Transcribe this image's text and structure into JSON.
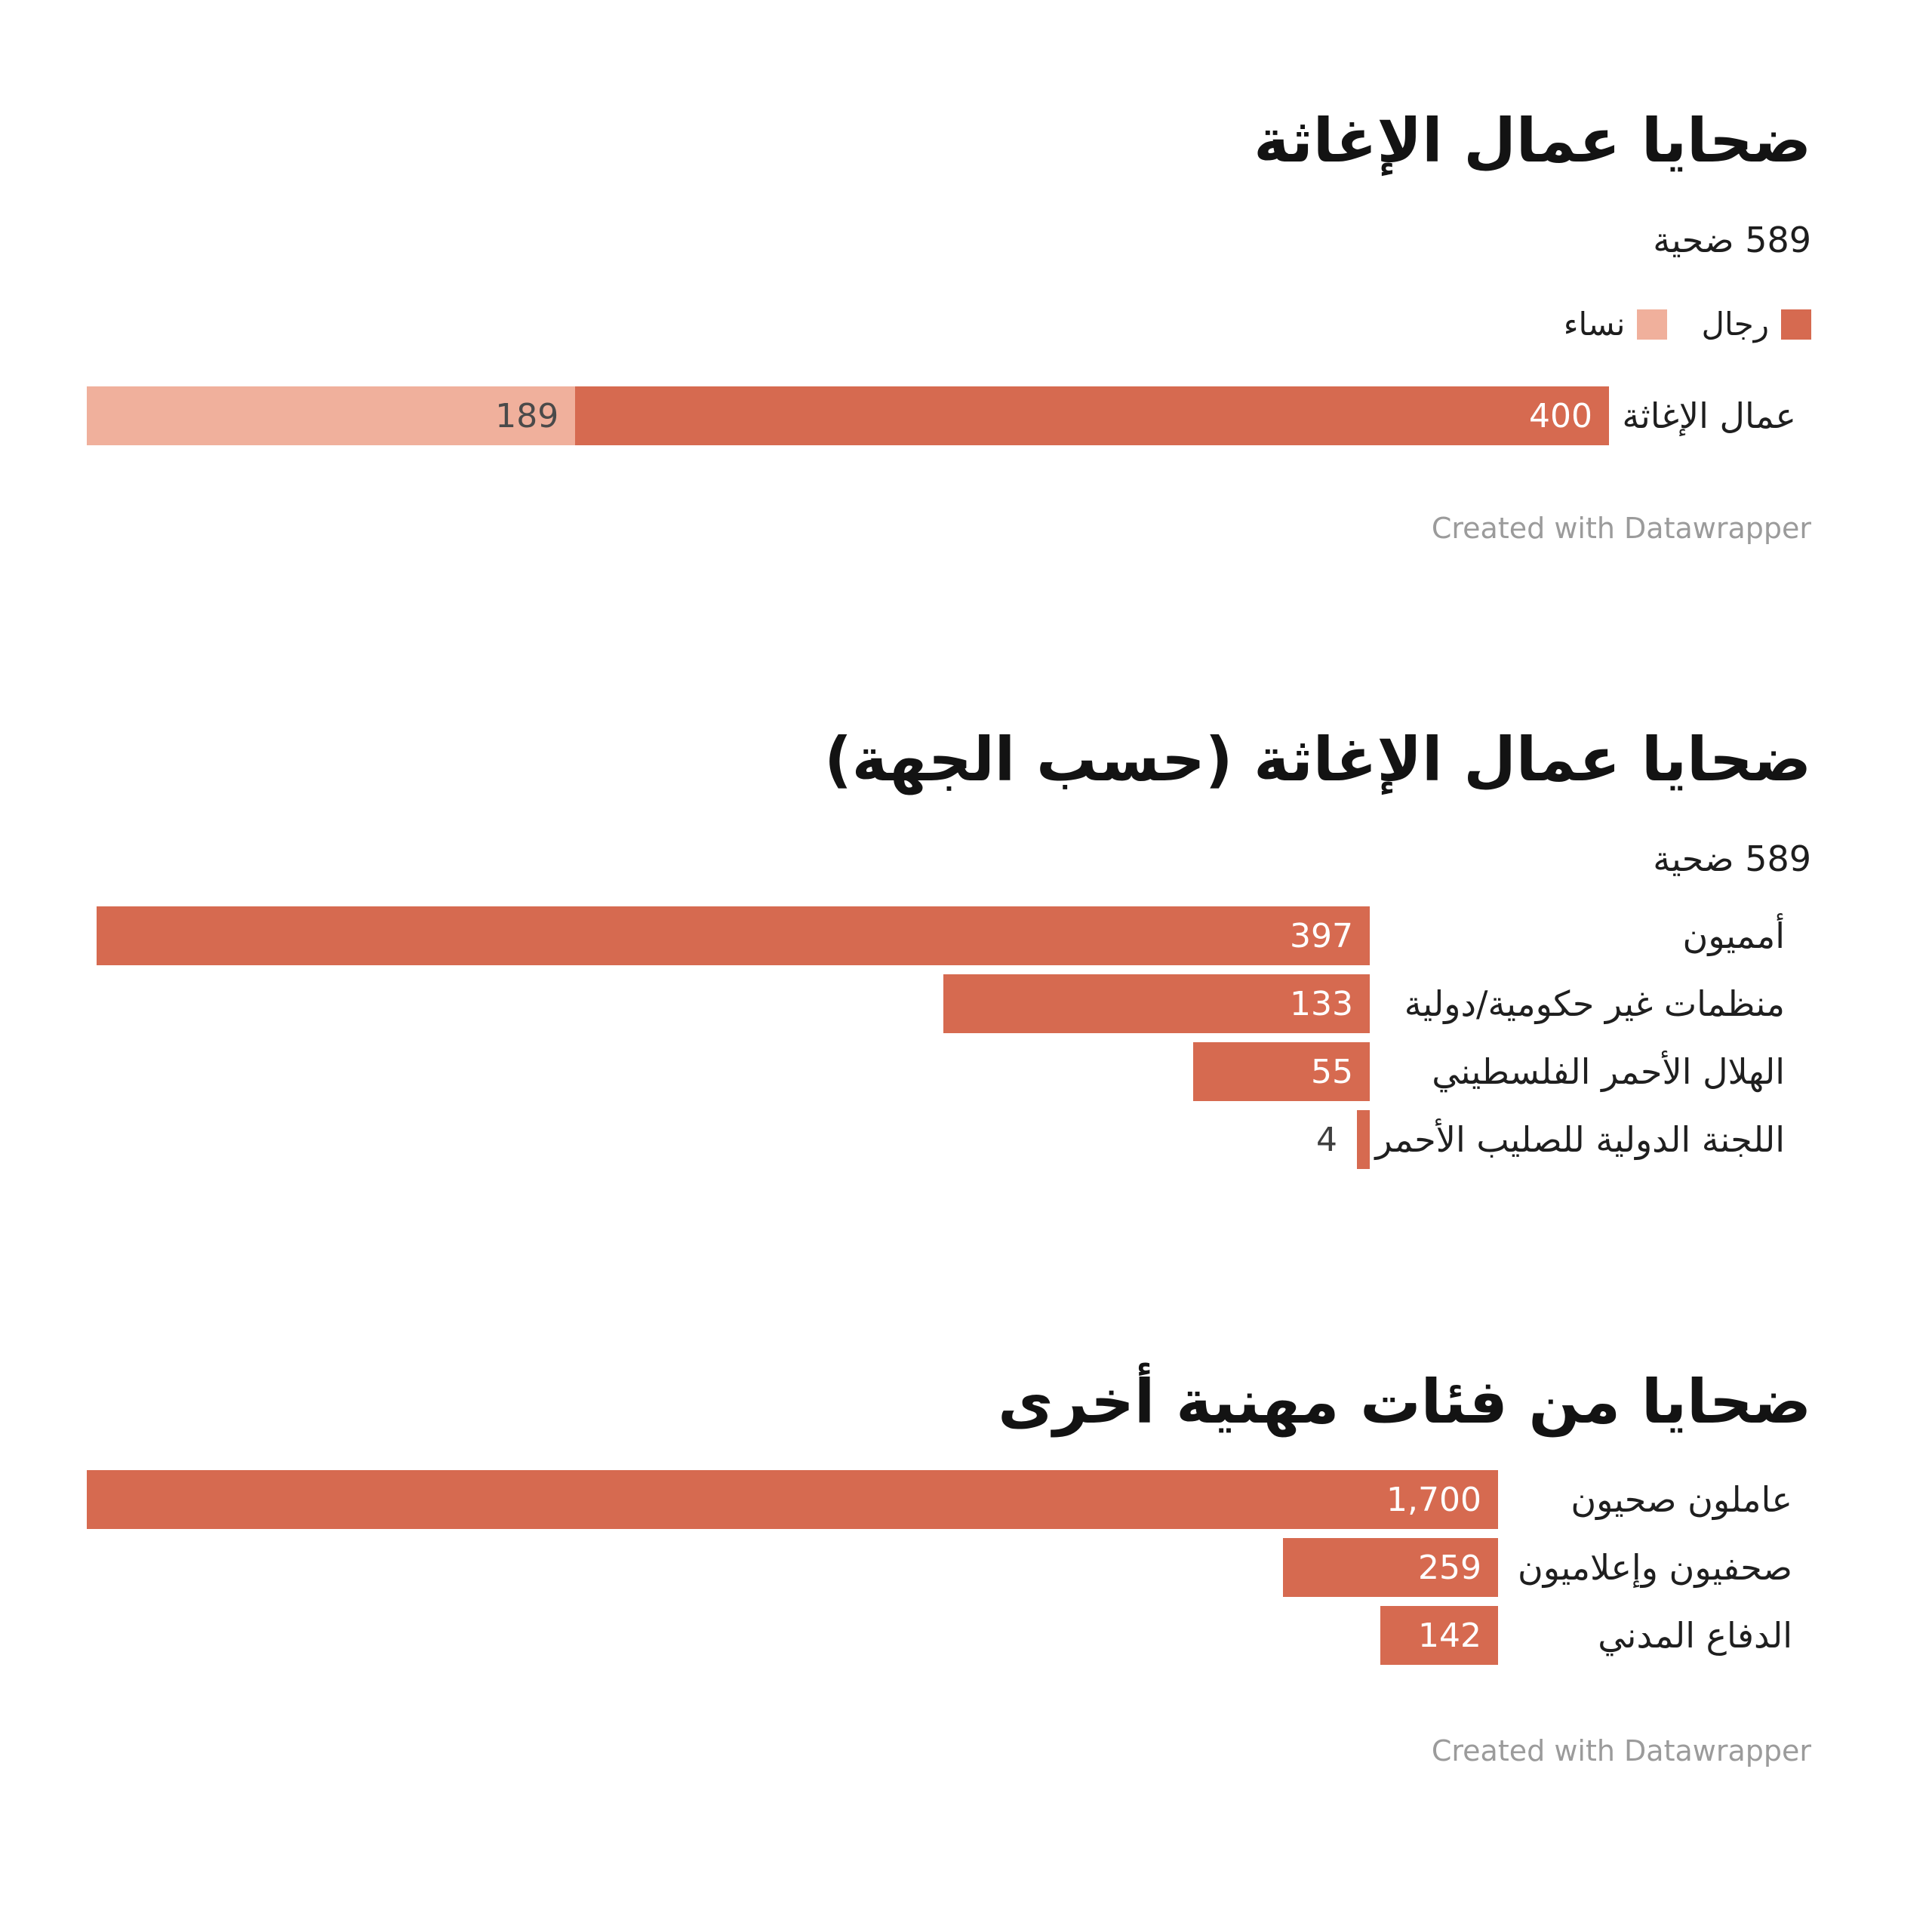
{
  "colors": {
    "men_dark": "#d66a50",
    "women_light": "#f0b09c",
    "value_on_dark": "#ffffff",
    "value_on_light": "#4a4a4a",
    "footer_gray": "#9b9b9b"
  },
  "chart_data": [
    {
      "type": "bar",
      "stacked": true,
      "title": "ضحايا عمال الإغاثة",
      "subtitle": "589 ضحية",
      "legend": [
        {
          "label": "رجال",
          "color": "#d66a50"
        },
        {
          "label": "نساء",
          "color": "#f0b09c"
        }
      ],
      "categories": [
        "عمال الإغاثة"
      ],
      "series": [
        {
          "name": "رجال",
          "values": [
            400
          ],
          "value_labels": [
            "400"
          ]
        },
        {
          "name": "نساء",
          "values": [
            189
          ],
          "value_labels": [
            "189"
          ]
        }
      ],
      "total": 589,
      "xlim": [
        0,
        589
      ],
      "grid": false,
      "legend_position": "top-right",
      "footer": "Created with Datawrapper"
    },
    {
      "type": "bar",
      "stacked": false,
      "title": "ضحايا عمال الإغاثة (حسب الجهة)",
      "subtitle": "589 ضحية",
      "categories": [
        "أمميون",
        "منظمات غير حكومية/دولية",
        "الهلال الأحمر الفلسطيني",
        "اللجنة الدولية للصليب الأحمر"
      ],
      "values": [
        397,
        133,
        55,
        4
      ],
      "value_labels": [
        "397",
        "133",
        "55",
        "4"
      ],
      "xmax": 400,
      "grid": false
    },
    {
      "type": "bar",
      "stacked": false,
      "title": "ضحايا من فئات مهنية أخرى",
      "categories": [
        "عاملون صحيون",
        "صحفيون وإعلاميون",
        "الدفاع المدني"
      ],
      "values": [
        1700,
        259,
        142
      ],
      "value_labels": [
        "1,700",
        "259",
        "142"
      ],
      "xmax": 1700,
      "grid": false,
      "footer": "Created with Datawrapper"
    }
  ]
}
